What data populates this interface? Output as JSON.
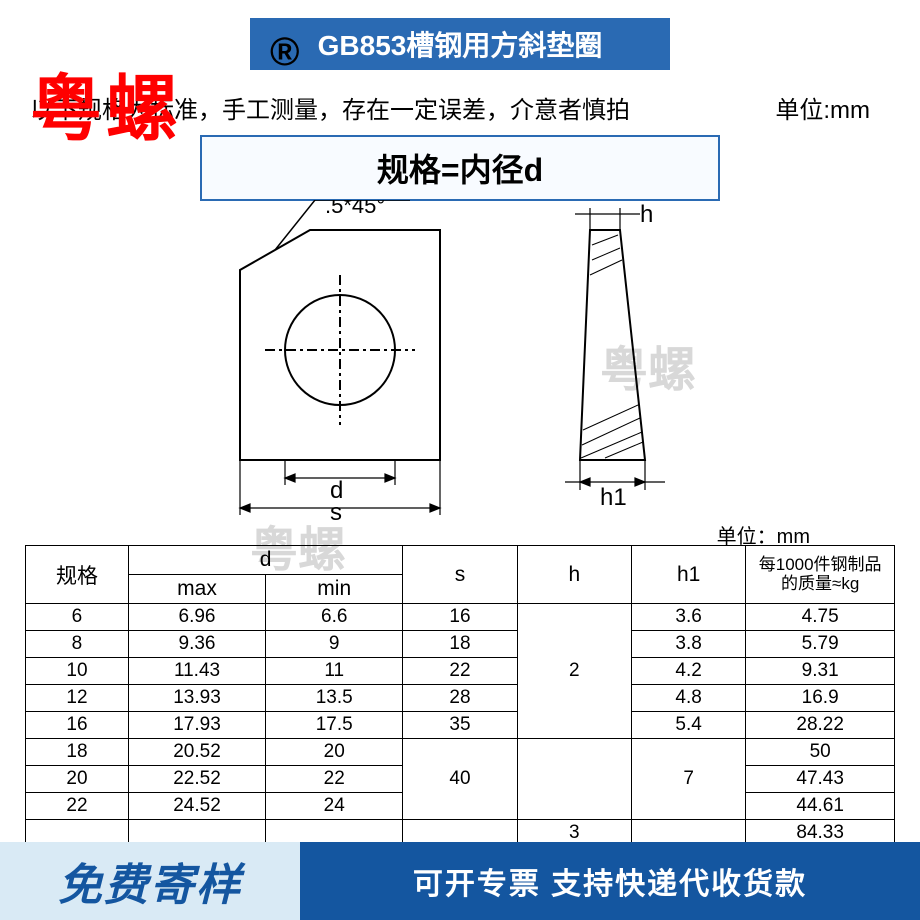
{
  "title_banner": "GB853槽钢用方斜垫圈",
  "brand_overlay": "粤螺",
  "registered_mark": "®",
  "note_text": "以下规格为标准，手工测量，存在一定误差，介意者慎拍",
  "unit_text": "单位:mm",
  "spec_formula": "规格=内径d",
  "table_unit": "单位：mm",
  "diagram": {
    "chamfer_label": ".5*45°",
    "d_label": "d",
    "s_label": "s",
    "h_label": "h",
    "h1_label": "h1"
  },
  "watermarks": {
    "wm1": "粤螺",
    "wm2": "粤螺"
  },
  "table": {
    "headers": {
      "spec": "规格",
      "d": "d",
      "d_max": "max",
      "d_min": "min",
      "s": "s",
      "h": "h",
      "h1": "h1",
      "weight": "每1000件钢制品的质量≈kg"
    },
    "rows": [
      {
        "spec": "6",
        "dmax": "6.96",
        "dmin": "6.6",
        "s": "16",
        "h": "",
        "h1": "3.6",
        "kg": "4.75"
      },
      {
        "spec": "8",
        "dmax": "9.36",
        "dmin": "9",
        "s": "18",
        "h": "",
        "h1": "3.8",
        "kg": "5.79"
      },
      {
        "spec": "10",
        "dmax": "11.43",
        "dmin": "11",
        "s": "22",
        "h": "2",
        "h1": "4.2",
        "kg": "9.31"
      },
      {
        "spec": "12",
        "dmax": "13.93",
        "dmin": "13.5",
        "s": "28",
        "h": "",
        "h1": "4.8",
        "kg": "16.9"
      },
      {
        "spec": "16",
        "dmax": "17.93",
        "dmin": "17.5",
        "s": "35",
        "h": "",
        "h1": "5.4",
        "kg": "28.22"
      },
      {
        "spec": "18",
        "dmax": "20.52",
        "dmin": "20",
        "s": "",
        "h": "",
        "h1": "",
        "kg": "50"
      },
      {
        "spec": "20",
        "dmax": "22.52",
        "dmin": "22",
        "s": "40",
        "h": "",
        "h1": "7",
        "kg": "47.43"
      },
      {
        "spec": "22",
        "dmax": "24.52",
        "dmin": "24",
        "s": "",
        "h": "",
        "h1": "",
        "kg": "44.61"
      },
      {
        "spec": "",
        "dmax": "",
        "dmin": "",
        "s": "",
        "h": "3",
        "h1": "",
        "kg": "84.33"
      }
    ],
    "h_merge": {
      "value": "2",
      "start": 0,
      "span": 5
    },
    "h_merge2": {
      "value": "3",
      "start": 8,
      "span": 1
    },
    "s_merge": {
      "value": "40",
      "start": 5,
      "span": 3
    },
    "h1_merge": {
      "value": "7",
      "start": 5,
      "span": 3
    }
  },
  "footer": {
    "left": "免费寄样",
    "right": "可开专票 支持快递代收货款"
  },
  "colors": {
    "banner_bg": "#2a6ab3",
    "brand_red": "#ff0000",
    "footer_light": "#d9eaf5",
    "footer_dark": "#1456a0",
    "watermark": "#d8d8d8"
  }
}
